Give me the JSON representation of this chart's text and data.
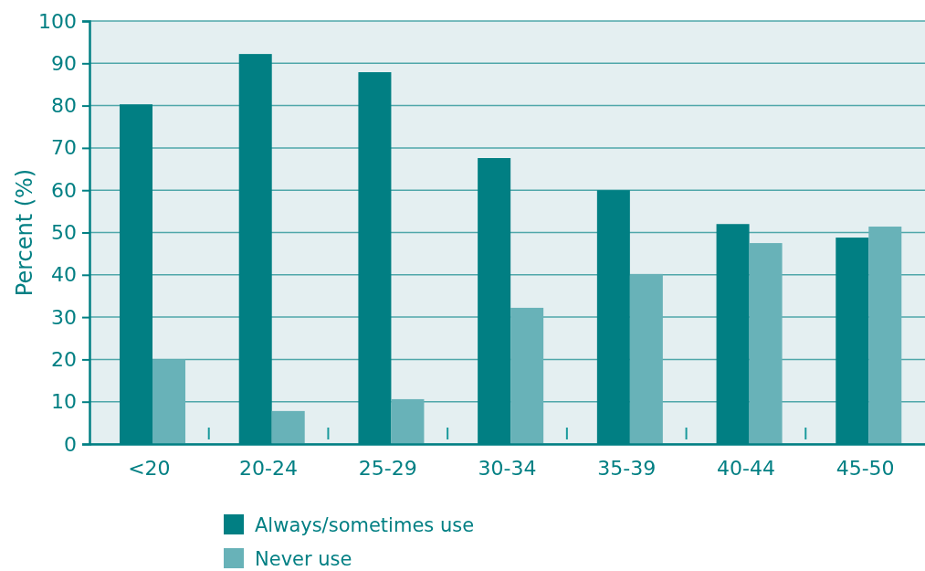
{
  "chart_data": {
    "type": "bar",
    "ylabel": "Percent (%)",
    "categories": [
      "<20",
      "20-24",
      "25-29",
      "30-34",
      "35-39",
      "40-44",
      "45-50"
    ],
    "series": [
      {
        "name": "Always/sometimes use",
        "color": "#017f83",
        "values": [
          80.3,
          92.2,
          87.9,
          67.6,
          60,
          52,
          48.8
        ]
      },
      {
        "name": "Never use",
        "color": "#68b2b8",
        "values": [
          20,
          7.8,
          10.6,
          32.2,
          40.2,
          47.5,
          51.4
        ]
      }
    ],
    "ylim": [
      0,
      100
    ],
    "yticks": [
      0,
      10,
      20,
      30,
      40,
      50,
      60,
      70,
      80,
      90,
      100
    ],
    "grid": "y",
    "legend": "bottom"
  }
}
